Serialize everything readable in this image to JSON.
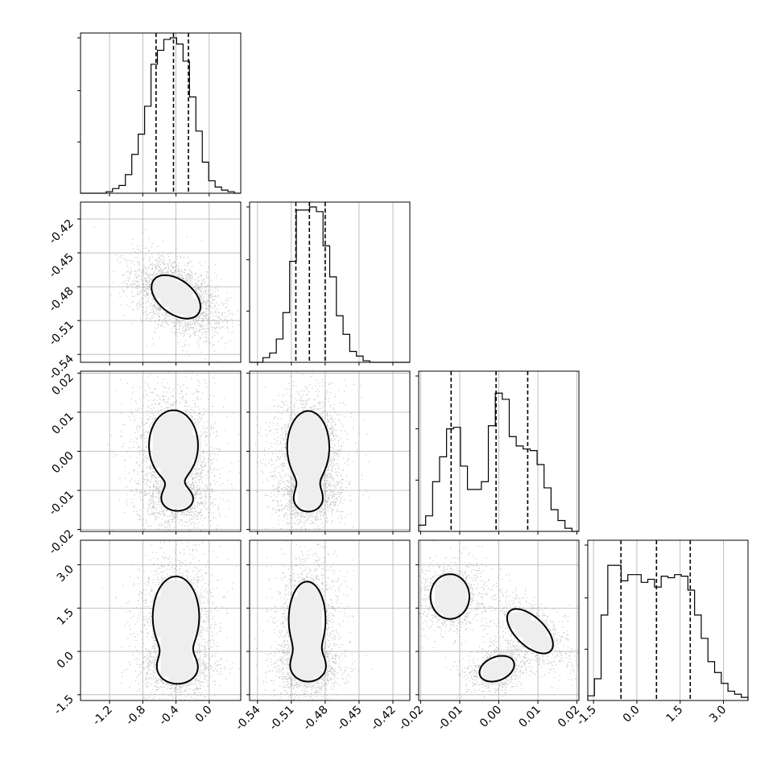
{
  "chart_data": {
    "type": "corner",
    "title": "",
    "grid": true,
    "parameters": [
      {
        "index": 0,
        "label": "",
        "range": [
          -1.55,
          0.38
        ],
        "ticks": [
          "-1.2",
          "-0.8",
          "-0.4",
          "0.0"
        ],
        "tick_values": [
          -1.2,
          -0.8,
          -0.4,
          0.0
        ],
        "quantiles": [
          -0.64,
          -0.43,
          -0.25
        ],
        "histogram": [
          0.0,
          0.0,
          0.0,
          0.0,
          0.01,
          0.03,
          0.05,
          0.12,
          0.25,
          0.38,
          0.56,
          0.83,
          0.92,
          0.99,
          1.0,
          0.96,
          0.85,
          0.62,
          0.4,
          0.2,
          0.08,
          0.04,
          0.02,
          0.01,
          0.0
        ]
      },
      {
        "index": 1,
        "label": "",
        "range": [
          -0.547,
          -0.405
        ],
        "ticks": [
          "-0.54",
          "-0.51",
          "-0.48",
          "-0.45",
          "-0.42"
        ],
        "tick_values": [
          -0.54,
          -0.51,
          -0.48,
          -0.45,
          -0.42
        ],
        "quantiles": [
          -0.506,
          -0.494,
          -0.48
        ],
        "histogram": [
          0.0,
          0.0,
          0.03,
          0.06,
          0.15,
          0.32,
          0.65,
          0.98,
          0.98,
          1.0,
          0.97,
          0.75,
          0.55,
          0.3,
          0.18,
          0.07,
          0.04,
          0.01,
          0.0,
          0.0,
          0.0,
          0.0,
          0.0,
          0.0
        ]
      },
      {
        "index": 2,
        "label": "",
        "range": [
          -0.0205,
          0.0205
        ],
        "ticks": [
          "-0.02",
          "-0.01",
          "0.00",
          "0.01",
          "0.02"
        ],
        "tick_values": [
          -0.02,
          -0.01,
          0.0,
          0.01,
          0.02
        ],
        "quantiles": [
          -0.0122,
          -0.0007,
          0.0074
        ],
        "histogram": [
          0.04,
          0.1,
          0.32,
          0.48,
          0.66,
          0.67,
          0.42,
          0.27,
          0.27,
          0.32,
          0.68,
          0.89,
          0.85,
          0.61,
          0.55,
          0.53,
          0.52,
          0.43,
          0.28,
          0.14,
          0.07,
          0.02,
          0.0
        ]
      },
      {
        "index": 3,
        "label": "",
        "range": [
          -1.7,
          3.85
        ],
        "ticks": [
          "-1.5",
          "0.0",
          "1.5",
          "3.0"
        ],
        "tick_values": [
          -1.5,
          0.0,
          1.5,
          3.0
        ],
        "quantiles": [
          -0.55,
          0.68,
          1.85
        ],
        "histogram": [
          0.03,
          0.14,
          0.55,
          0.87,
          0.87,
          0.77,
          0.81,
          0.81,
          0.76,
          0.78,
          0.73,
          0.8,
          0.79,
          0.81,
          0.8,
          0.71,
          0.55,
          0.4,
          0.25,
          0.18,
          0.11,
          0.06,
          0.04,
          0.02
        ]
      }
    ],
    "pairs": [
      {
        "x": 0,
        "y": 1,
        "modes": [
          {
            "mx": -0.4,
            "my": -0.489,
            "sx": 0.19,
            "sy": 0.0124,
            "rho": -0.45,
            "w": 1.0
          }
        ],
        "contour_levels": [
          0.3,
          1.0,
          1.9
        ]
      },
      {
        "x": 0,
        "y": 2,
        "modes": [
          {
            "mx": -0.43,
            "my": 0.0015,
            "sx": 0.19,
            "sy": 0.0058,
            "rho": 0.0,
            "w": 1.0
          },
          {
            "mx": -0.38,
            "my": -0.0125,
            "sx": 0.17,
            "sy": 0.0026,
            "rho": 0.0,
            "w": 0.5
          }
        ],
        "contour_levels": [
          0.3,
          1.0,
          2.2
        ]
      },
      {
        "x": 1,
        "y": 2,
        "modes": [
          {
            "mx": -0.495,
            "my": 0.001,
            "sx": 0.012,
            "sy": 0.006,
            "rho": 0.0,
            "w": 1.0
          },
          {
            "mx": -0.495,
            "my": -0.0125,
            "sx": 0.011,
            "sy": 0.0027,
            "rho": 0.0,
            "w": 0.5
          }
        ],
        "contour_levels": [
          0.3,
          1.0,
          2.2
        ]
      },
      {
        "x": 0,
        "y": 3,
        "modes": [
          {
            "mx": -0.4,
            "my": 1.2,
            "sx": 0.18,
            "sy": 0.9,
            "rho": 0.0,
            "w": 1.0
          },
          {
            "mx": -0.38,
            "my": -0.6,
            "sx": 0.16,
            "sy": 0.35,
            "rho": 0.0,
            "w": 0.8
          }
        ],
        "contour_levels": [
          0.3,
          1.0,
          2.2
        ]
      },
      {
        "x": 1,
        "y": 3,
        "modes": [
          {
            "mx": -0.496,
            "my": 1.1,
            "sx": 0.0105,
            "sy": 0.85,
            "rho": 0.0,
            "w": 1.0
          },
          {
            "mx": -0.495,
            "my": -0.55,
            "sx": 0.011,
            "sy": 0.35,
            "rho": 0.0,
            "w": 0.7
          }
        ],
        "contour_levels": [
          0.3,
          1.0,
          2.2
        ]
      },
      {
        "x": 2,
        "y": 3,
        "modes": [
          {
            "mx": -0.0125,
            "my": 1.9,
            "sx": 0.0032,
            "sy": 0.5,
            "rho": 0.0,
            "w": 1.0
          },
          {
            "mx": -0.0005,
            "my": -0.6,
            "sx": 0.003,
            "sy": 0.3,
            "rho": 0.3,
            "w": 0.9
          },
          {
            "mx": 0.008,
            "my": 0.7,
            "sx": 0.0042,
            "sy": 0.55,
            "rho": -0.6,
            "w": 0.8
          }
        ],
        "contour_levels": [
          0.3,
          1.0,
          2.2
        ]
      }
    ]
  }
}
